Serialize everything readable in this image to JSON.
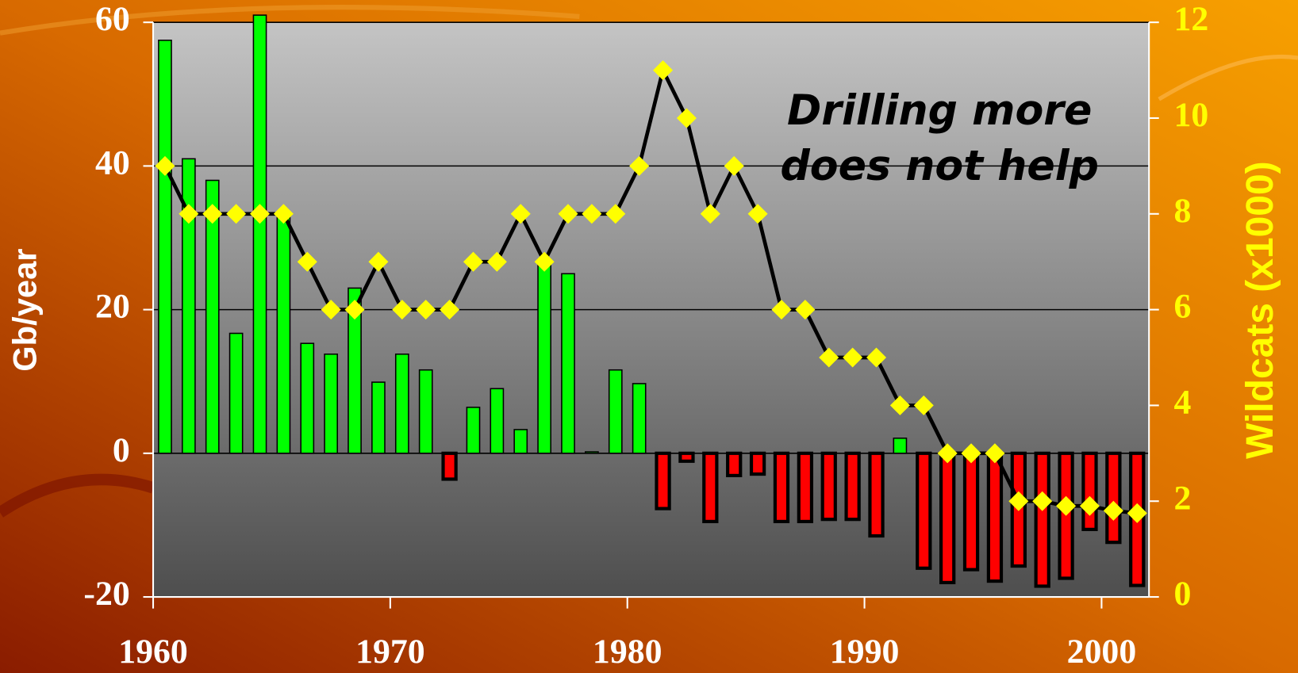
{
  "chart_data": {
    "type": "bar-line",
    "annotation": [
      "Drilling more",
      "does not help"
    ],
    "ylabel": "Gb/year",
    "y2label": "Wildcats (x1000)",
    "x": [
      1960,
      1961,
      1962,
      1963,
      1964,
      1965,
      1966,
      1967,
      1968,
      1969,
      1970,
      1971,
      1972,
      1973,
      1974,
      1975,
      1976,
      1977,
      1978,
      1979,
      1980,
      1981,
      1982,
      1983,
      1984,
      1985,
      1986,
      1987,
      1988,
      1989,
      1990,
      1991,
      1992,
      1993,
      1994,
      1995,
      1996,
      1997,
      1998,
      1999,
      2000,
      2001
    ],
    "xlim": [
      1960,
      2002
    ],
    "xticks": [
      1960,
      1970,
      1980,
      1990,
      2000
    ],
    "ylim": [
      -20,
      60
    ],
    "yticks": [
      -20,
      0,
      20,
      40,
      60
    ],
    "y2lim": [
      0,
      12
    ],
    "y2ticks": [
      0,
      2,
      4,
      6,
      8,
      10,
      12
    ],
    "grid": true,
    "series": [
      {
        "type": "bar",
        "color": "#00ff00",
        "negative_color": "#ff0000",
        "values": [
          57.5,
          41,
          38,
          16.7,
          61,
          33,
          15.3,
          13.8,
          23,
          9.9,
          13.8,
          11.6,
          -3.6,
          6.4,
          9,
          3.3,
          27,
          25,
          0.2,
          11.6,
          9.7,
          -7.7,
          -1.1,
          -9.5,
          -3.1,
          -2.9,
          -9.5,
          -9.5,
          -9.2,
          -9.2,
          -11.5,
          2.1,
          -16,
          -18,
          -16.2,
          -17.8,
          -15.7,
          -18.5,
          -17.4,
          -10.6,
          -12.4,
          -18.4
        ]
      },
      {
        "type": "line",
        "axis": "y2",
        "color": "#000000",
        "marker_color": "#ffff00",
        "values": [
          9,
          8,
          8,
          8,
          8,
          8,
          7,
          6,
          6,
          7,
          6,
          6,
          6,
          7,
          7,
          8,
          7,
          8,
          8,
          8,
          9,
          11,
          10,
          8,
          9,
          8,
          6,
          6,
          5,
          5,
          5,
          4,
          4,
          3,
          3,
          3,
          2,
          2,
          1.9,
          1.9,
          1.8,
          1.75
        ]
      }
    ]
  }
}
